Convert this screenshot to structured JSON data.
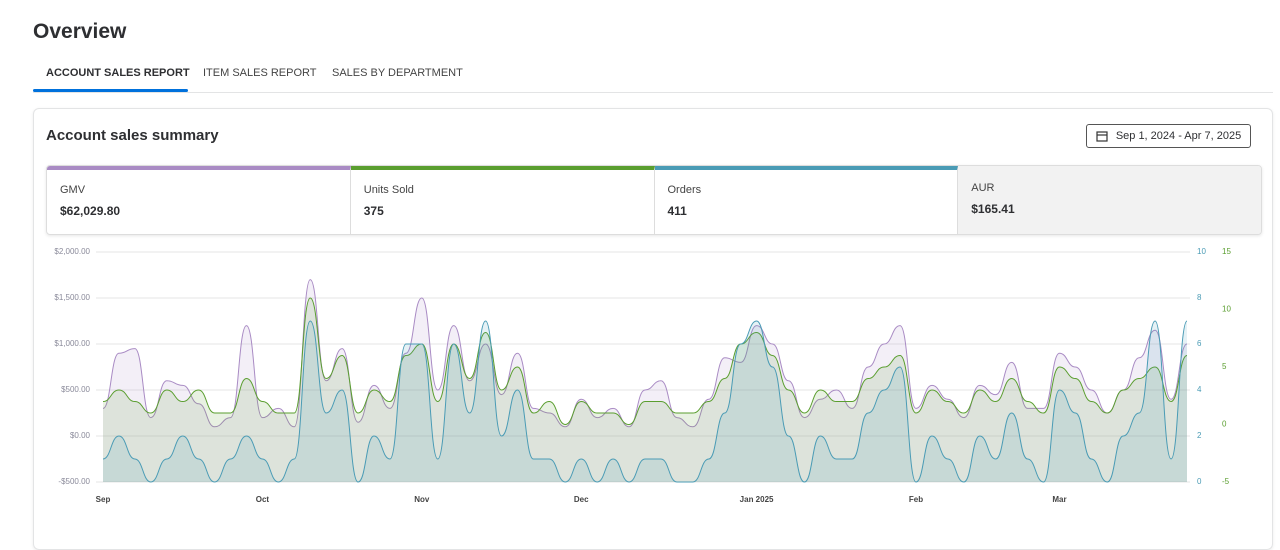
{
  "header": {
    "title": "Overview"
  },
  "tabs": [
    "ACCOUNT SALES REPORT",
    "ITEM SALES REPORT",
    "SALES BY DEPARTMENT"
  ],
  "card": {
    "title": "Account sales summary",
    "date_range": "Sep 1, 2024 - Apr 7, 2025"
  },
  "metrics": [
    {
      "label": "GMV",
      "value": "$62,029.80"
    },
    {
      "label": "Units Sold",
      "value": "375"
    },
    {
      "label": "Orders",
      "value": "411"
    },
    {
      "label": "AUR",
      "value": "$165.41"
    }
  ],
  "chart_data": {
    "type": "line",
    "categories": [
      "Sep",
      null,
      null,
      null,
      null,
      null,
      null,
      null,
      null,
      null,
      "Oct",
      null,
      null,
      null,
      null,
      null,
      null,
      null,
      null,
      null,
      "Nov",
      null,
      null,
      null,
      null,
      null,
      null,
      null,
      null,
      null,
      "Dec",
      null,
      null,
      null,
      null,
      null,
      null,
      null,
      null,
      null,
      null,
      "Jan 2025",
      null,
      null,
      null,
      null,
      null,
      null,
      null,
      null,
      null,
      "Feb",
      null,
      null,
      null,
      null,
      null,
      null,
      null,
      null,
      "Mar",
      null,
      null,
      null,
      null,
      null,
      null,
      null,
      null
    ],
    "series": [
      {
        "color": "#a98bc4",
        "axis": "y",
        "values": [
          300,
          900,
          950,
          200,
          600,
          550,
          350,
          100,
          200,
          1200,
          200,
          300,
          100,
          1700,
          600,
          950,
          150,
          550,
          300,
          900,
          1500,
          500,
          1200,
          600,
          1000,
          450,
          900,
          300,
          250,
          100,
          400,
          200,
          300,
          100,
          500,
          600,
          200,
          100,
          400,
          850,
          800,
          1200,
          1000,
          600,
          200,
          400,
          500,
          300,
          750,
          1000,
          1200,
          300,
          550,
          400,
          200,
          550,
          450,
          800,
          300,
          300,
          900,
          750,
          500,
          250,
          500,
          850,
          1150,
          400,
          1000
        ]
      },
      {
        "color": "#5a9e2f",
        "axis": "y3",
        "values": [
          2,
          3,
          2,
          1,
          3,
          2,
          3,
          1,
          1,
          4,
          2,
          1,
          1,
          11,
          4,
          6,
          1,
          3,
          2,
          6,
          7,
          2,
          7,
          4,
          8,
          3,
          5,
          1,
          2,
          0,
          2,
          1,
          1,
          0,
          2,
          2,
          1,
          1,
          2,
          4,
          7,
          8,
          6,
          3,
          1,
          3,
          2,
          2,
          4,
          5,
          6,
          1,
          3,
          2,
          1,
          3,
          2,
          4,
          2,
          1,
          5,
          4,
          2,
          1,
          3,
          4,
          5,
          2,
          6
        ]
      },
      {
        "color": "#4a9bb5",
        "axis": "y2",
        "values": [
          1,
          2,
          1,
          0,
          1,
          2,
          1,
          0,
          1,
          2,
          1,
          0,
          1,
          7,
          3,
          4,
          0,
          2,
          1,
          6,
          6,
          1,
          6,
          3,
          7,
          2,
          4,
          1,
          1,
          0,
          1,
          0,
          1,
          0,
          1,
          1,
          0,
          0,
          1,
          3,
          6,
          7,
          5,
          2,
          0,
          2,
          1,
          1,
          3,
          4,
          5,
          0,
          2,
          1,
          0,
          2,
          1,
          3,
          1,
          0,
          4,
          3,
          1,
          0,
          2,
          3,
          7,
          1,
          7
        ]
      }
    ],
    "ylim": [
      -500,
      2000
    ],
    "yticks": [
      {
        "value": -500,
        "label": "-$500.00"
      },
      {
        "value": 0,
        "label": "$0.00"
      },
      {
        "value": 500,
        "label": "$500.00"
      },
      {
        "value": 1000,
        "label": "$1,000.00"
      },
      {
        "value": 1500,
        "label": "$1,500.00"
      },
      {
        "value": 2000,
        "label": "$2,000.00"
      }
    ],
    "y2lim": [
      0,
      10
    ],
    "y2ticks": [
      0,
      2,
      4,
      6,
      8,
      10
    ],
    "y3lim": [
      -5,
      15
    ],
    "y3ticks": [
      -5,
      0,
      5,
      10,
      15
    ],
    "grid": true
  }
}
